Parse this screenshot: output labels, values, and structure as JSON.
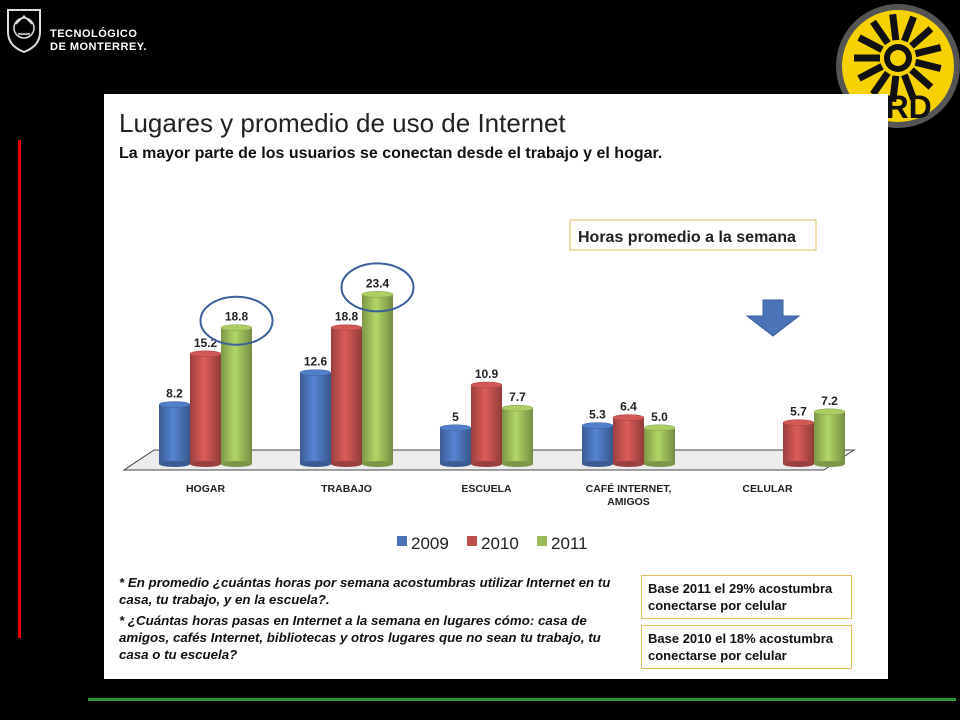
{
  "logos": {
    "tec_text": "TECNOLÓGICO\nDE MONTERREY.",
    "tec_icon": "tec-seal-icon",
    "prd_text": "PRD",
    "prd_icon": "prd-sun-icon",
    "prd_colors": {
      "bg": "#f6d200",
      "ring": "#555555",
      "text": "#111111"
    }
  },
  "slide": {
    "title": "Lugares y promedio de uso de Internet",
    "subtitle": "La mayor parte de los usuarios se conectan desde el trabajo y el hogar.",
    "callout": "Horas promedio a la semana",
    "notes": [
      "* En promedio ¿cuántas horas por semana acostumbras utilizar Internet en tu casa, tu trabajo, y en la escuela?.",
      "* ¿Cuántas horas pasas en Internet a la semana en lugares cómo: casa de amigos, cafés Internet, bibliotecas y otros lugares que no sean tu trabajo, tu casa o tu escuela?"
    ],
    "base_boxes": [
      "Base 2011 el 29% acostumbra conectarse por celular",
      "Base 2010 el 18% acostumbra conectarse por celular"
    ]
  },
  "chart_data": {
    "type": "bar",
    "categories": [
      "HOGAR",
      "TRABAJO",
      "ESCUELA",
      "CAFÉ INTERNET,\nAMIGOS",
      "CELULAR"
    ],
    "series": [
      {
        "name": "2009",
        "color": "#4a73b8",
        "values": [
          8.2,
          12.6,
          5,
          5.3,
          null
        ],
        "labels": [
          "8.2",
          "12.6",
          "5",
          "5.3",
          ""
        ]
      },
      {
        "name": "2010",
        "color": "#c0504d",
        "values": [
          15.2,
          18.8,
          10.9,
          6.4,
          5.7
        ],
        "labels": [
          "15.2",
          "18.8",
          "10.9",
          "6.4",
          "5.7"
        ]
      },
      {
        "name": "2011",
        "color": "#9bbb59",
        "values": [
          18.8,
          23.4,
          7.7,
          5.0,
          7.2
        ],
        "labels": [
          "18.8",
          "23.4",
          "7.7",
          "5.0",
          "7.2"
        ]
      }
    ],
    "ylim": [
      0,
      24
    ],
    "highlighted": [
      {
        "category": "HOGAR",
        "series": "2011"
      },
      {
        "category": "TRABAJO",
        "series": "2011"
      }
    ],
    "legend_position": "bottom",
    "grid": false,
    "arrow_marker": {
      "category": "CELULAR",
      "color": "#4a73b8"
    }
  }
}
